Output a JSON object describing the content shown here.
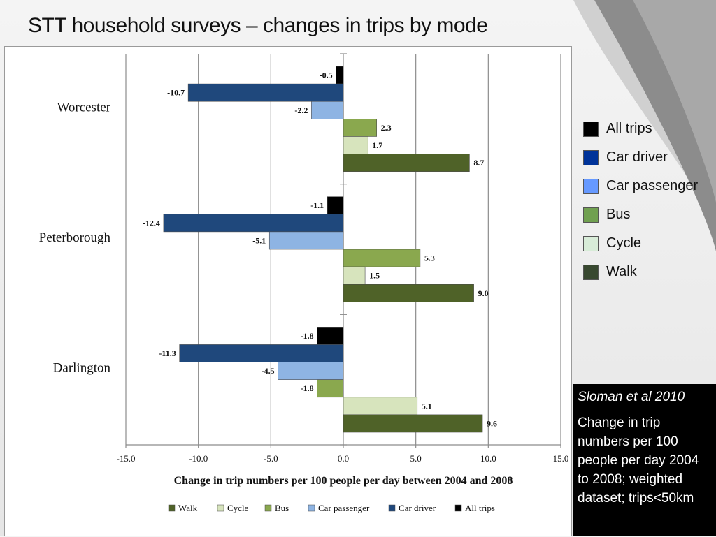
{
  "slide": {
    "title": "STT household surveys – changes in trips by mode"
  },
  "legend_right": [
    {
      "label": "All trips",
      "color": "#000000"
    },
    {
      "label": "Car driver",
      "color": "#003399"
    },
    {
      "label": "Car passenger",
      "color": "#6699ff"
    },
    {
      "label": "Bus",
      "color": "#70a050"
    },
    {
      "label": "Cycle",
      "color": "#d8ecd8"
    },
    {
      "label": "Walk",
      "color": "#384830"
    }
  ],
  "note": {
    "citation": "Sloman et al 2010",
    "body": "Change in trip numbers per 100 people per day 2004 to 2008; weighted dataset; trips<50km"
  },
  "chart_data": {
    "type": "bar",
    "orientation": "horizontal",
    "categories": [
      "Worcester",
      "Peterborough",
      "Darlington"
    ],
    "series": [
      {
        "name": "All trips",
        "color": "#000000",
        "values": [
          -0.5,
          -1.1,
          -1.8
        ],
        "labels": [
          "-0.5",
          "-1.1",
          "-1.8"
        ]
      },
      {
        "name": "Car driver",
        "color": "#1f487c",
        "values": [
          -10.7,
          -12.4,
          -11.3
        ],
        "labels": [
          "-10.7",
          "-12.4",
          "-11.3"
        ]
      },
      {
        "name": "Car passenger",
        "color": "#8eb4e3",
        "values": [
          -2.2,
          -5.1,
          -4.5
        ],
        "labels": [
          "-2.2",
          "-5.1",
          "-4.5"
        ]
      },
      {
        "name": "Bus",
        "color": "#8aa84e",
        "values": [
          2.3,
          5.3,
          -1.8
        ],
        "labels": [
          "2.3",
          "5.3",
          "-1.8"
        ]
      },
      {
        "name": "Cycle",
        "color": "#d7e4bd",
        "values": [
          1.7,
          1.5,
          5.1
        ],
        "labels": [
          "1.7",
          "1.5",
          "5.1"
        ]
      },
      {
        "name": "Walk",
        "color": "#4f6228",
        "values": [
          8.7,
          9.0,
          9.6
        ],
        "labels": [
          "8.7",
          "9.0",
          "9.6"
        ]
      }
    ],
    "xlim": [
      -15,
      15
    ],
    "xticks": [
      -15,
      -10,
      -5,
      0,
      5,
      10,
      15
    ],
    "xtick_labels": [
      "-15.0",
      "-10.0",
      "-5.0",
      "0.0",
      "5.0",
      "10.0",
      "15.0"
    ],
    "xlabel": "Change in trip numbers per 100 people per day between 2004 and 2008",
    "grid": true,
    "legend_position": "bottom",
    "legend_order": [
      "Walk",
      "Cycle",
      "Bus",
      "Car passenger",
      "Car driver",
      "All trips"
    ]
  }
}
